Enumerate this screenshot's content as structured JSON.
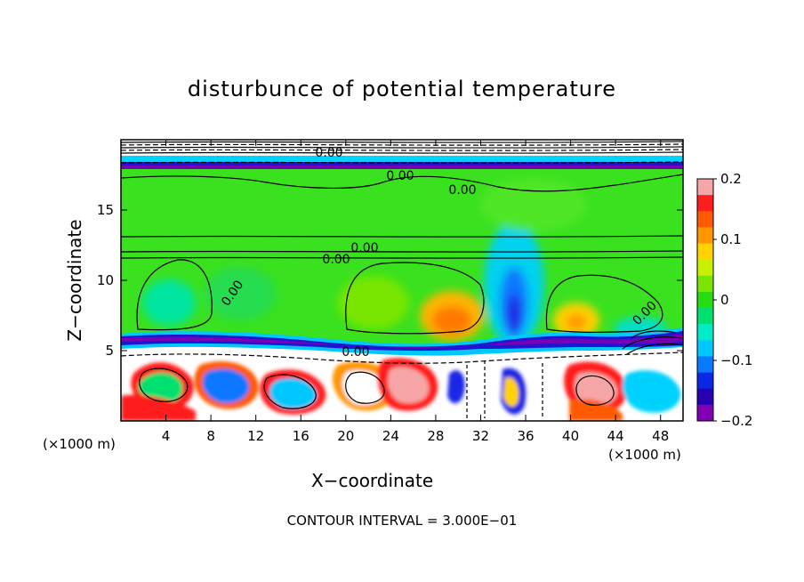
{
  "chart_data": {
    "type": "heatmap",
    "title": "disturbunce of potential temperature",
    "xlabel": "X−coordinate",
    "ylabel": "Z−coordinate",
    "x_unit": "(×1000 m)",
    "y_unit": "(×1000 m)",
    "xlim": [
      0,
      50
    ],
    "ylim": [
      0,
      20
    ],
    "x_ticks": [
      4,
      8,
      12,
      16,
      20,
      24,
      28,
      32,
      36,
      40,
      44,
      48
    ],
    "y_ticks": [
      5,
      10,
      15
    ],
    "colorbar": {
      "min": -0.2,
      "max": 0.2,
      "ticks": [
        0.2,
        0.1,
        0,
        -0.1,
        -0.2
      ],
      "tick_labels": [
        "0.2",
        "0.1",
        "0",
        "−0.1",
        "−0.2"
      ],
      "colors": [
        "#f6a6a6",
        "#ff1e1e",
        "#ff5a00",
        "#ff9600",
        "#ffd200",
        "#c8f000",
        "#78e600",
        "#28dc14",
        "#00e06e",
        "#00ebc8",
        "#00c8ff",
        "#0a78ff",
        "#0a28e6",
        "#2800b4",
        "#8200b4"
      ]
    },
    "contour_labels": [
      "0.00",
      "0.00",
      "0.00",
      "0.00",
      "0.00",
      "0.00",
      "0.00",
      "0.00"
    ],
    "contour_interval": "CONTOUR INTERVAL = 3.000E−01"
  }
}
